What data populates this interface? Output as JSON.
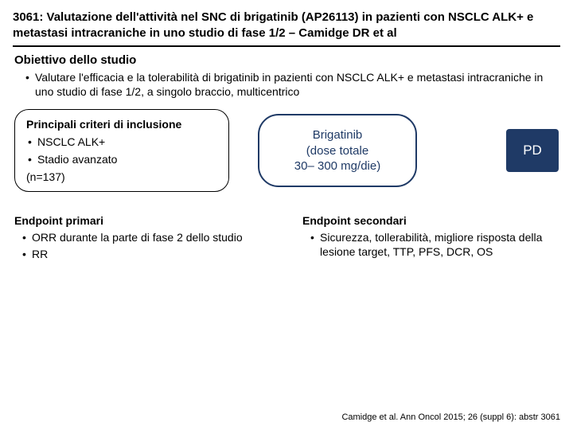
{
  "colors": {
    "text": "#000000",
    "accent_blue": "#1f3a66",
    "background": "#ffffff"
  },
  "title": "3061: Valutazione dell'attività nel SNC di brigatinib (AP26113) in pazienti con NSCLC ALK+ e metastasi intracraniche in uno studio di fase 1/2 – Camidge DR et al",
  "objective": {
    "heading": "Obiettivo dello studio",
    "bullet": "Valutare l'efficacia e la tolerabilità di brigatinib in pazienti con NSCLC ALK+ e metastasi intracraniche in uno studio di fase 1/2, a singolo braccio, multicentrico"
  },
  "inclusion": {
    "heading": "Principali criteri di inclusione",
    "items": [
      "NSCLC ALK+",
      "Stadio avanzato"
    ],
    "n_text": "(n=137)"
  },
  "treatment": {
    "line1": "Brigatinib",
    "line2": "(dose totale",
    "line3": "30– 300 mg/die)"
  },
  "pd_label": "PD",
  "endpoints": {
    "primary": {
      "heading": "Endpoint primari",
      "items": [
        "ORR durante la parte di fase 2 dello studio",
        "RR"
      ]
    },
    "secondary": {
      "heading": "Endpoint secondari",
      "items": [
        "Sicurezza, tollerabilità, migliore risposta della lesione target, TTP, PFS, DCR, OS"
      ]
    }
  },
  "citation": "Camidge et al. Ann Oncol 2015; 26 (suppl 6): abstr 3061"
}
